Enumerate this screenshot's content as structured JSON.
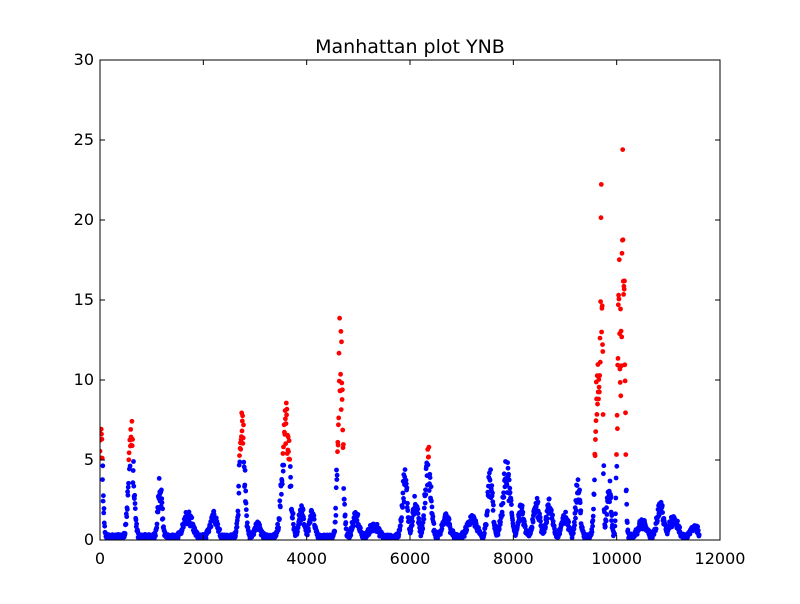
{
  "chart_data": {
    "type": "scatter",
    "title": "Manhattan plot YNB",
    "xlabel": "",
    "ylabel": "",
    "xlim": [
      0,
      12000
    ],
    "ylim": [
      0,
      30
    ],
    "xticks": [
      0,
      2000,
      4000,
      6000,
      8000,
      10000,
      12000
    ],
    "xtick_labels": [
      "0",
      "2000",
      "4000",
      "6000",
      "8000",
      "10000",
      "12000"
    ],
    "yticks": [
      0,
      5,
      10,
      15,
      20,
      25,
      30
    ],
    "ytick_labels": [
      "0",
      "5",
      "10",
      "15",
      "20",
      "25",
      "30"
    ],
    "grid": false,
    "legend": "none",
    "threshold": 5,
    "colors": {
      "below_threshold": "#0000ff",
      "above_threshold": "#ff0000"
    },
    "x_max_data": 11600,
    "peaks": [
      {
        "x": 20,
        "y": 7.7,
        "width": 60
      },
      {
        "x": 600,
        "y": 7.8,
        "width": 90
      },
      {
        "x": 1160,
        "y": 4.2,
        "width": 70
      },
      {
        "x": 1700,
        "y": 1.6,
        "width": 150
      },
      {
        "x": 2200,
        "y": 1.8,
        "width": 120
      },
      {
        "x": 2750,
        "y": 8.2,
        "width": 90
      },
      {
        "x": 3050,
        "y": 1.0,
        "width": 100
      },
      {
        "x": 3600,
        "y": 8.8,
        "width": 130
      },
      {
        "x": 3900,
        "y": 1.9,
        "width": 100
      },
      {
        "x": 4100,
        "y": 1.8,
        "width": 90
      },
      {
        "x": 4650,
        "y": 15.0,
        "width": 80
      },
      {
        "x": 4950,
        "y": 1.8,
        "width": 100
      },
      {
        "x": 5300,
        "y": 0.9,
        "width": 150
      },
      {
        "x": 5900,
        "y": 4.4,
        "width": 90
      },
      {
        "x": 6100,
        "y": 2.5,
        "width": 100
      },
      {
        "x": 6350,
        "y": 5.8,
        "width": 100
      },
      {
        "x": 6700,
        "y": 1.6,
        "width": 120
      },
      {
        "x": 7200,
        "y": 1.5,
        "width": 150
      },
      {
        "x": 7550,
        "y": 4.4,
        "width": 90
      },
      {
        "x": 7870,
        "y": 4.9,
        "width": 130
      },
      {
        "x": 8150,
        "y": 2.0,
        "width": 100
      },
      {
        "x": 8450,
        "y": 2.6,
        "width": 110
      },
      {
        "x": 8700,
        "y": 2.4,
        "width": 110
      },
      {
        "x": 9000,
        "y": 1.5,
        "width": 120
      },
      {
        "x": 9250,
        "y": 4.0,
        "width": 80
      },
      {
        "x": 9630,
        "y": 12.8,
        "width": 80
      },
      {
        "x": 9700,
        "y": 22.7,
        "width": 50
      },
      {
        "x": 9850,
        "y": 4.0,
        "width": 70
      },
      {
        "x": 10050,
        "y": 19.0,
        "width": 60
      },
      {
        "x": 10120,
        "y": 25.7,
        "width": 60
      },
      {
        "x": 10500,
        "y": 1.1,
        "width": 150
      },
      {
        "x": 10850,
        "y": 2.3,
        "width": 120
      },
      {
        "x": 11100,
        "y": 1.5,
        "width": 140
      },
      {
        "x": 11500,
        "y": 0.9,
        "width": 120
      }
    ]
  }
}
